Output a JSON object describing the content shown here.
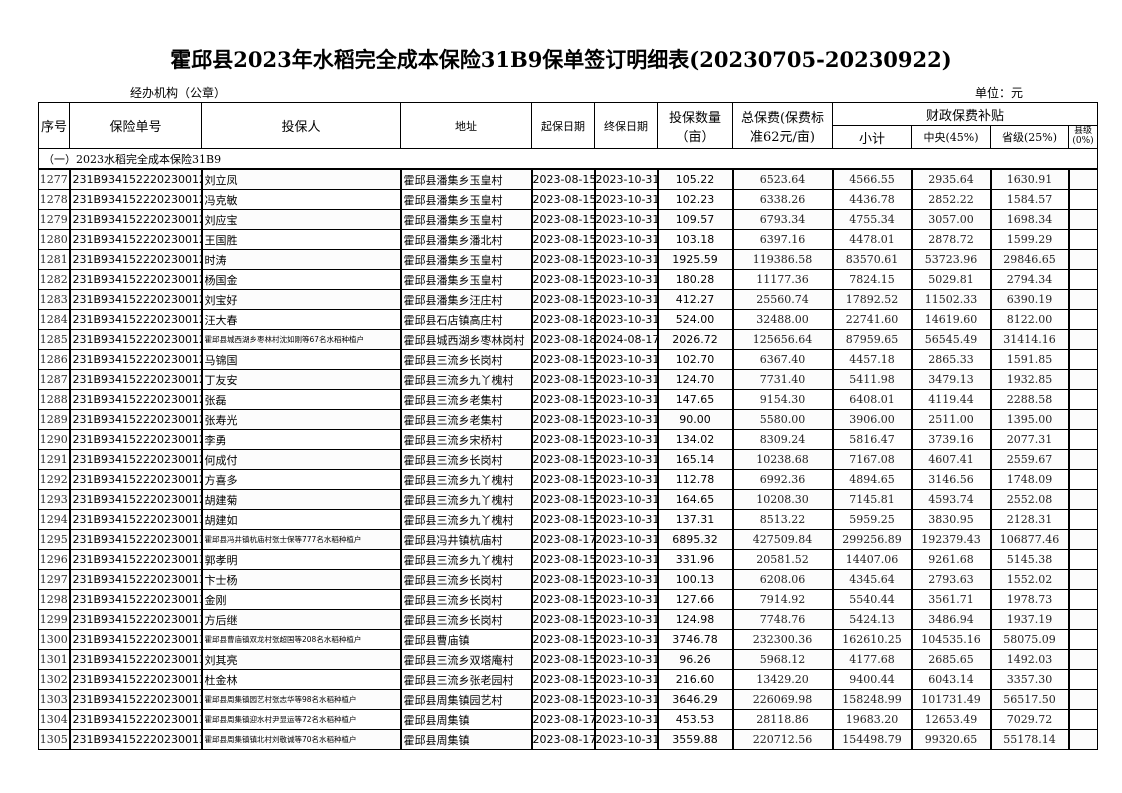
{
  "title": "霍邱县2023年水稻完全成本保险31B9保单签订明细表(20230705-20230922)",
  "org_label": "经办机构（公章）",
  "unit_label": "单位：元",
  "headers": {
    "index": "序号",
    "policy_no": "保险单号",
    "holder": "投保人",
    "address": "地址",
    "start_date": "起保日期",
    "end_date": "终保日期",
    "quantity": "投保数量（亩）",
    "total_premium": "总保费(保费标准62元/亩)",
    "subsidy_group": "财政保费补贴",
    "subtotal": "小计",
    "central": "中央(45%)",
    "provincial": "省级(25%)",
    "county": "县级(0%)"
  },
  "section_label": "（一）2023水稻完全成本保险31B9",
  "rows": [
    [
      "1277",
      "231B93415222023001283",
      "刘立凤",
      "霍邱县潘集乡玉皇村",
      "2023-08-15",
      "2023-10-31",
      "105.22",
      "6523.64",
      "4566.55",
      "2935.64",
      "1630.91",
      ""
    ],
    [
      "1278",
      "231B93415222023001284",
      "冯克敏",
      "霍邱县潘集乡玉皇村",
      "2023-08-15",
      "2023-10-31",
      "102.23",
      "6338.26",
      "4436.78",
      "2852.22",
      "1584.57",
      ""
    ],
    [
      "1279",
      "231B93415222023001285",
      "刘应宝",
      "霍邱县潘集乡玉皇村",
      "2023-08-15",
      "2023-10-31",
      "109.57",
      "6793.34",
      "4755.34",
      "3057.00",
      "1698.34",
      ""
    ],
    [
      "1280",
      "231B93415222023001286",
      "王国胜",
      "霍邱县潘集乡潘北村",
      "2023-08-15",
      "2023-10-31",
      "103.18",
      "6397.16",
      "4478.01",
      "2878.72",
      "1599.29",
      ""
    ],
    [
      "1281",
      "231B93415222023001287",
      "时涛",
      "霍邱县潘集乡玉皇村",
      "2023-08-15",
      "2023-10-31",
      "1925.59",
      "119386.58",
      "83570.61",
      "53723.96",
      "29846.65",
      ""
    ],
    [
      "1282",
      "231B93415222023001288",
      "杨国金",
      "霍邱县潘集乡玉皇村",
      "2023-08-15",
      "2023-10-31",
      "180.28",
      "11177.36",
      "7824.15",
      "5029.81",
      "2794.34",
      ""
    ],
    [
      "1283",
      "231B93415222023001289",
      "刘宝好",
      "霍邱县潘集乡汪庄村",
      "2023-08-15",
      "2023-10-31",
      "412.27",
      "25560.74",
      "17892.52",
      "11502.33",
      "6390.19",
      ""
    ],
    [
      "1284",
      "231B93415222023001290",
      "汪大春",
      "霍邱县石店镇高庄村",
      "2023-08-18",
      "2023-10-31",
      "524.00",
      "32488.00",
      "22741.60",
      "14619.60",
      "8122.00",
      ""
    ],
    [
      "1285",
      "231B93415222023001291",
      "霍邱县城西湖乡枣林村沈如刚等67名水稻种植户",
      "霍邱县城西湖乡枣林岗村",
      "2023-08-18",
      "2024-08-17",
      "2026.72",
      "125656.64",
      "87959.65",
      "56545.49",
      "31414.16",
      ""
    ],
    [
      "1286",
      "231B93415222023001292",
      "马锦国",
      "霍邱县三流乡长岗村",
      "2023-08-15",
      "2023-10-31",
      "102.70",
      "6367.40",
      "4457.18",
      "2865.33",
      "1591.85",
      ""
    ],
    [
      "1287",
      "231B93415222023001293",
      "丁友安",
      "霍邱县三流乡九丫槐村",
      "2023-08-15",
      "2023-10-31",
      "124.70",
      "7731.40",
      "5411.98",
      "3479.13",
      "1932.85",
      ""
    ],
    [
      "1288",
      "231B93415222023001294",
      "张磊",
      "霍邱县三流乡老集村",
      "2023-08-15",
      "2023-10-31",
      "147.65",
      "9154.30",
      "6408.01",
      "4119.44",
      "2288.58",
      ""
    ],
    [
      "1289",
      "231B93415222023001295",
      "张寿光",
      "霍邱县三流乡老集村",
      "2023-08-15",
      "2023-10-31",
      "90.00",
      "5580.00",
      "3906.00",
      "2511.00",
      "1395.00",
      ""
    ],
    [
      "1290",
      "231B93415222023001296",
      "李勇",
      "霍邱县三流乡宋桥村",
      "2023-08-15",
      "2023-10-31",
      "134.02",
      "8309.24",
      "5816.47",
      "3739.16",
      "2077.31",
      ""
    ],
    [
      "1291",
      "231B93415222023001297",
      "何成付",
      "霍邱县三流乡长岗村",
      "2023-08-15",
      "2023-10-31",
      "165.14",
      "10238.68",
      "7167.08",
      "4607.41",
      "2559.67",
      ""
    ],
    [
      "1292",
      "231B93415222023001298",
      "方喜多",
      "霍邱县三流乡九丫槐村",
      "2023-08-15",
      "2023-10-31",
      "112.78",
      "6992.36",
      "4894.65",
      "3146.56",
      "1748.09",
      ""
    ],
    [
      "1293",
      "231B93415222023001299",
      "胡建菊",
      "霍邱县三流乡九丫槐村",
      "2023-08-15",
      "2023-10-31",
      "164.65",
      "10208.30",
      "7145.81",
      "4593.74",
      "2552.08",
      ""
    ],
    [
      "1294",
      "231B93415222023001300",
      "胡建如",
      "霍邱县三流乡九丫槐村",
      "2023-08-15",
      "2023-10-31",
      "137.31",
      "8513.22",
      "5959.25",
      "3830.95",
      "2128.31",
      ""
    ],
    [
      "1295",
      "231B93415222023001301",
      "霍邱县冯井镇杭庙村张士保等777名水稻种植户",
      "霍邱县冯井镇杭庙村",
      "2023-08-17",
      "2023-10-31",
      "6895.32",
      "427509.84",
      "299256.89",
      "192379.43",
      "106877.46",
      ""
    ],
    [
      "1296",
      "231B93415222023001302",
      "郭孝明",
      "霍邱县三流乡九丫槐村",
      "2023-08-15",
      "2023-10-31",
      "331.96",
      "20581.52",
      "14407.06",
      "9261.68",
      "5145.38",
      ""
    ],
    [
      "1297",
      "231B93415222023001303",
      "卞士杨",
      "霍邱县三流乡长岗村",
      "2023-08-15",
      "2023-10-31",
      "100.13",
      "6208.06",
      "4345.64",
      "2793.63",
      "1552.02",
      ""
    ],
    [
      "1298",
      "231B93415222023001304",
      "金刚",
      "霍邱县三流乡长岗村",
      "2023-08-15",
      "2023-10-31",
      "127.66",
      "7914.92",
      "5540.44",
      "3561.71",
      "1978.73",
      ""
    ],
    [
      "1299",
      "231B93415222023001305",
      "方后继",
      "霍邱县三流乡长岗村",
      "2023-08-15",
      "2023-10-31",
      "124.98",
      "7748.76",
      "5424.13",
      "3486.94",
      "1937.19",
      ""
    ],
    [
      "1300",
      "231B93415222023001306",
      "霍邱县曹庙镇双龙村张超国等208名水稻种植户",
      "霍邱县曹庙镇",
      "2023-08-15",
      "2023-10-31",
      "3746.78",
      "232300.36",
      "162610.25",
      "104535.16",
      "58075.09",
      ""
    ],
    [
      "1301",
      "231B93415222023001307",
      "刘其亮",
      "霍邱县三流乡双塔庵村",
      "2023-08-15",
      "2023-10-31",
      "96.26",
      "5968.12",
      "4177.68",
      "2685.65",
      "1492.03",
      ""
    ],
    [
      "1302",
      "231B93415222023001308",
      "杜金林",
      "霍邱县三流乡张老园村",
      "2023-08-15",
      "2023-10-31",
      "216.60",
      "13429.20",
      "9400.44",
      "6043.14",
      "3357.30",
      ""
    ],
    [
      "1303",
      "231B93415222023001309",
      "霍邱县周集镇园艺村张志华等98名水稻种植户",
      "霍邱县周集镇园艺村",
      "2023-08-15",
      "2023-10-31",
      "3646.29",
      "226069.98",
      "158248.99",
      "101731.49",
      "56517.50",
      ""
    ],
    [
      "1304",
      "231B93415222023001310",
      "霍邱县周集镇迎水村尹显运等72名水稻种植户",
      "霍邱县周集镇",
      "2023-08-17",
      "2023-10-31",
      "453.53",
      "28118.86",
      "19683.20",
      "12653.49",
      "7029.72",
      ""
    ],
    [
      "1305",
      "231B93415222023001311",
      "霍邱县周集镇镇北村刘敬诚等70名水稻种植户",
      "霍邱县周集镇",
      "2023-08-17",
      "2023-10-31",
      "3559.88",
      "220712.56",
      "154498.79",
      "99320.65",
      "55178.14",
      ""
    ]
  ]
}
